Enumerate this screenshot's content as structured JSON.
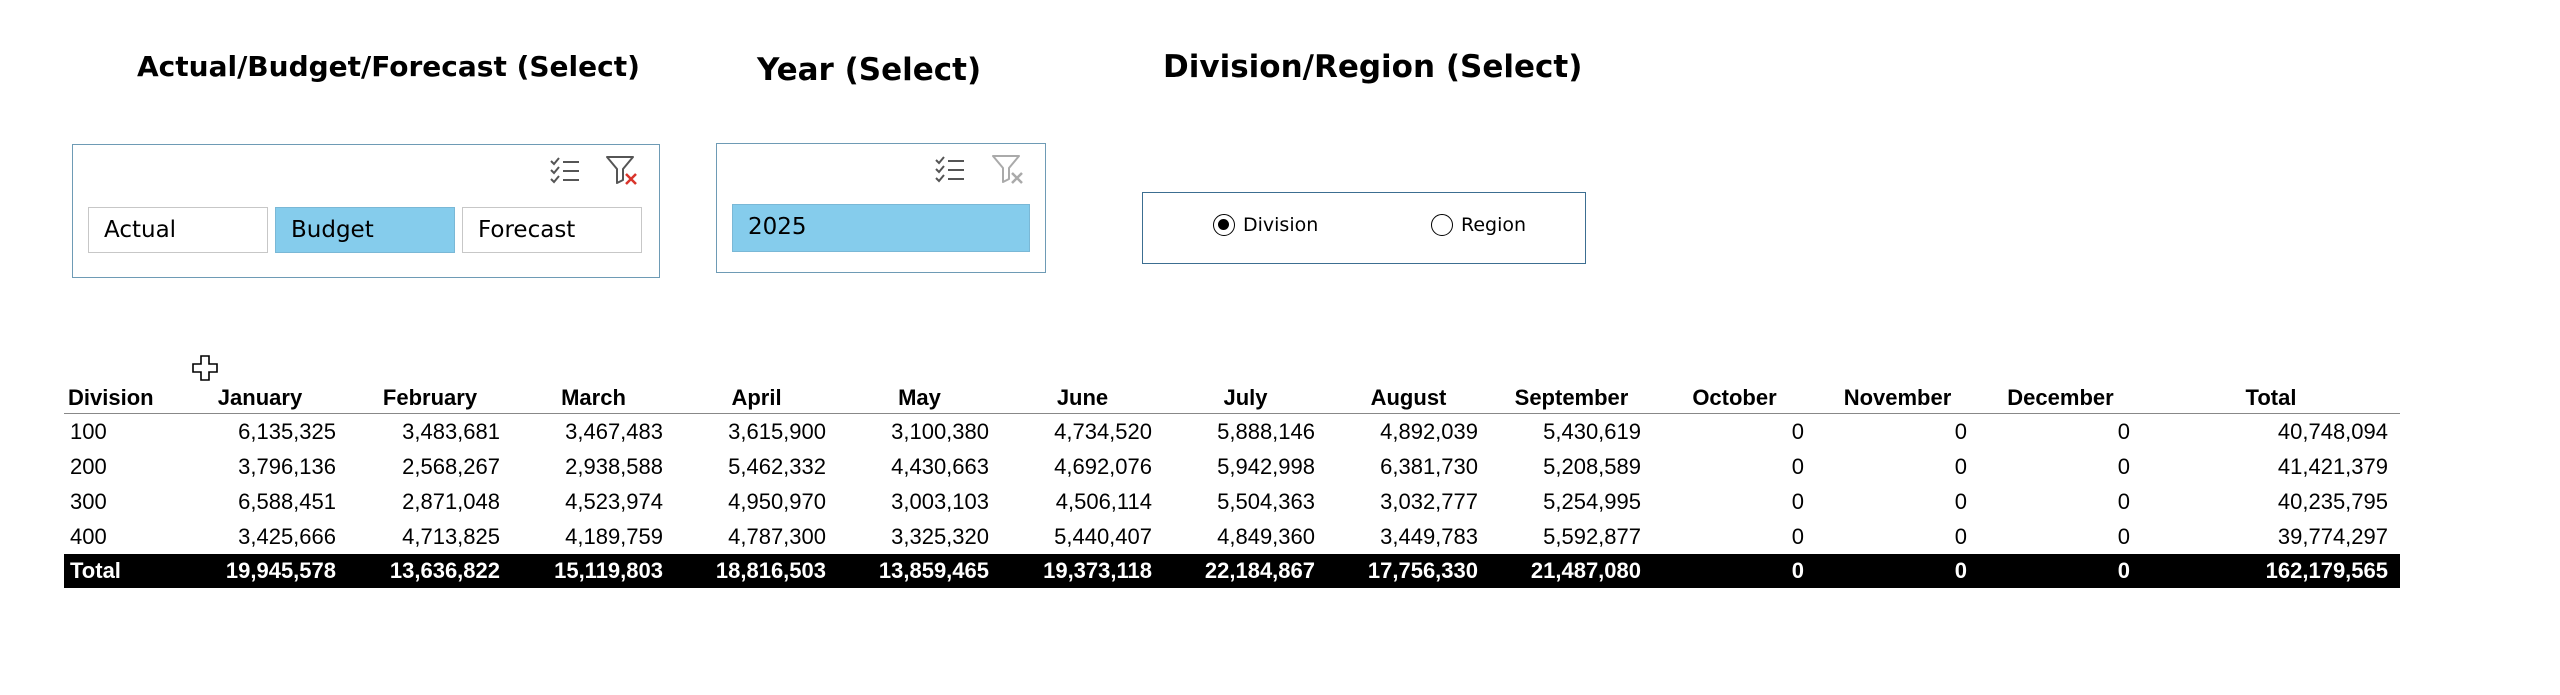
{
  "titles": {
    "scenario": "Actual/Budget/Forecast (Select)",
    "year": "Year (Select)",
    "view": "Division/Region (Select)"
  },
  "scenario_slicer": {
    "icons": [
      "multi-select-icon",
      "clear-filter-icon"
    ],
    "options": [
      "Actual",
      "Budget",
      "Forecast"
    ],
    "selected": "Budget"
  },
  "year_slicer": {
    "icons": [
      "multi-select-icon",
      "clear-filter-icon"
    ],
    "options": [
      "2025"
    ],
    "selected": "2025"
  },
  "view_option": {
    "options": [
      "Division",
      "Region"
    ],
    "selected": "Division"
  },
  "table": {
    "headers": [
      "Division",
      "January",
      "February",
      "March",
      "April",
      "May",
      "June",
      "July",
      "August",
      "September",
      "October",
      "November",
      "December",
      "Total"
    ],
    "rows": [
      [
        "100",
        "6,135,325",
        "3,483,681",
        "3,467,483",
        "3,615,900",
        "3,100,380",
        "4,734,520",
        "5,888,146",
        "4,892,039",
        "5,430,619",
        "0",
        "0",
        "0",
        "40,748,094"
      ],
      [
        "200",
        "3,796,136",
        "2,568,267",
        "2,938,588",
        "5,462,332",
        "4,430,663",
        "4,692,076",
        "5,942,998",
        "6,381,730",
        "5,208,589",
        "0",
        "0",
        "0",
        "41,421,379"
      ],
      [
        "300",
        "6,588,451",
        "2,871,048",
        "4,523,974",
        "4,950,970",
        "3,003,103",
        "4,506,114",
        "5,504,363",
        "3,032,777",
        "5,254,995",
        "0",
        "0",
        "0",
        "40,235,795"
      ],
      [
        "400",
        "3,425,666",
        "4,713,825",
        "4,189,759",
        "4,787,300",
        "3,325,320",
        "5,440,407",
        "4,849,360",
        "3,449,783",
        "5,592,877",
        "0",
        "0",
        "0",
        "39,774,297"
      ]
    ],
    "total": [
      "Total",
      "19,945,578",
      "13,636,822",
      "15,119,803",
      "18,816,503",
      "13,859,465",
      "19,373,118",
      "22,184,867",
      "17,756,330",
      "21,487,080",
      "0",
      "0",
      "0",
      "162,179,565"
    ]
  },
  "colors": {
    "slicer_selected": "#85ccec",
    "slicer_border": "#6e9bb5",
    "total_row_bg": "#000000",
    "total_row_text": "#ffffff"
  }
}
